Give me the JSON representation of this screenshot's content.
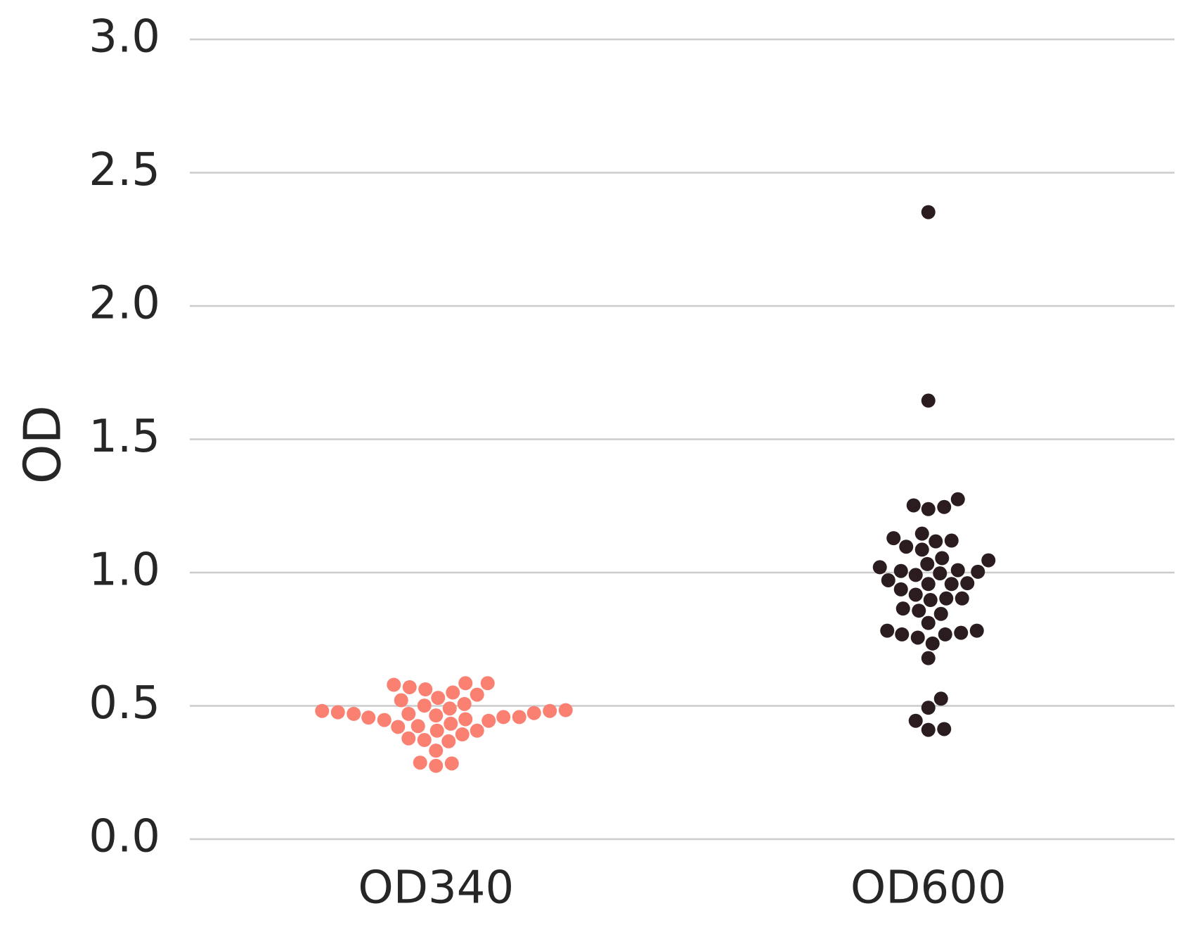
{
  "chart_data": {
    "type": "swarm",
    "ylabel": "OD",
    "categories": [
      "OD340",
      "OD600"
    ],
    "colors": [
      "#fa8072",
      "#2b1d1f"
    ],
    "values": [
      [
        0.57,
        0.55,
        0.53,
        0.507,
        0.484,
        0.481,
        0.473,
        0.47,
        0.458,
        0.456,
        0.447,
        0.433,
        0.421,
        0.407,
        0.378,
        0.332,
        0.284,
        0.275,
        0.287,
        0.367,
        0.372,
        0.393,
        0.407,
        0.424,
        0.444,
        0.45,
        0.458,
        0.464,
        0.47,
        0.476,
        0.585,
        0.562,
        0.542,
        0.521,
        0.501,
        0.481,
        0.585,
        0.579,
        0.49
      ],
      [
        1.02,
        1.006,
        0.997,
        0.971,
        0.957,
        0.917,
        0.903,
        0.865,
        0.811,
        0.782,
        0.679,
        0.493,
        0.413,
        0.41,
        0.444,
        0.527,
        0.857,
        0.768,
        0.774,
        0.782,
        0.845,
        0.897,
        0.903,
        0.957,
        0.96,
        0.991,
        1.003,
        1.009,
        1.054,
        2.352,
        1.645,
        1.275,
        1.246,
        1.238,
        1.252,
        1.146,
        1.12,
        1.032,
        0.937,
        0.756,
        0.734,
        0.768,
        1.046,
        1.086,
        1.097,
        1.117,
        1.129
      ]
    ],
    "ylim": [
      0,
      3.0
    ],
    "yticks": [
      {
        "value": 0,
        "label": "0.0"
      },
      {
        "value": 0.5,
        "label": "0.5"
      },
      {
        "value": 1.0,
        "label": "1.0"
      },
      {
        "value": 1.5,
        "label": "1.5"
      },
      {
        "value": 2.0,
        "label": "2.0"
      },
      {
        "value": 2.5,
        "label": "2.5"
      },
      {
        "value": 3.0,
        "label": "3.0"
      }
    ],
    "grid": true
  }
}
